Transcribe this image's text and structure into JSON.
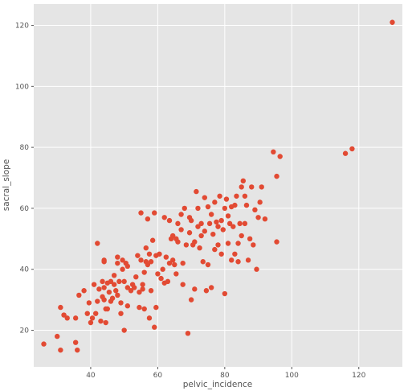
{
  "chart_data": {
    "type": "scatter",
    "title": "",
    "xlabel": "pelvic_incidence",
    "ylabel": "sacral_slope",
    "xlim": [
      23,
      133
    ],
    "ylim": [
      8,
      127
    ],
    "xticks": [
      40,
      60,
      80,
      100,
      120
    ],
    "yticks": [
      20,
      40,
      60,
      80,
      100,
      120
    ],
    "grid": true,
    "colors": {
      "point": "#E24A33",
      "background": "#E5E5E5",
      "grid": "#FFFFFF"
    },
    "series": [
      {
        "points": [
          [
            26,
            15.5
          ],
          [
            30,
            18
          ],
          [
            31,
            13.5
          ],
          [
            31,
            27.5
          ],
          [
            32,
            25
          ],
          [
            33,
            24
          ],
          [
            35.5,
            24
          ],
          [
            35.5,
            16
          ],
          [
            36,
            13.5
          ],
          [
            36.5,
            31.5
          ],
          [
            38,
            33
          ],
          [
            39,
            25.5
          ],
          [
            39.5,
            29
          ],
          [
            40,
            22.5
          ],
          [
            40.5,
            24
          ],
          [
            41,
            35
          ],
          [
            41.5,
            25.5
          ],
          [
            42,
            48.5
          ],
          [
            42,
            29.5
          ],
          [
            42.5,
            33.5
          ],
          [
            43,
            23
          ],
          [
            43.5,
            36
          ],
          [
            43.5,
            31
          ],
          [
            44,
            43
          ],
          [
            44,
            42.5
          ],
          [
            44,
            34
          ],
          [
            44,
            30
          ],
          [
            44.5,
            27
          ],
          [
            44.5,
            22.5
          ],
          [
            45,
            35.5
          ],
          [
            45,
            27
          ],
          [
            45.5,
            32.5
          ],
          [
            46,
            36
          ],
          [
            46,
            29.5
          ],
          [
            46.5,
            30.5
          ],
          [
            47,
            38
          ],
          [
            47,
            35
          ],
          [
            47.5,
            33
          ],
          [
            48,
            31.5
          ],
          [
            48,
            42
          ],
          [
            48,
            44
          ],
          [
            48.5,
            36
          ],
          [
            49,
            25.5
          ],
          [
            49,
            29
          ],
          [
            49.5,
            43
          ],
          [
            49.5,
            40
          ],
          [
            50,
            20
          ],
          [
            50,
            36
          ],
          [
            50.5,
            42
          ],
          [
            51,
            34
          ],
          [
            51,
            28
          ],
          [
            51,
            41
          ],
          [
            52,
            33
          ],
          [
            52.5,
            35
          ],
          [
            53,
            34
          ],
          [
            53.5,
            37.5
          ],
          [
            54,
            44.5
          ],
          [
            54.5,
            32.5
          ],
          [
            54.5,
            27.5
          ],
          [
            55,
            58.5
          ],
          [
            55,
            43
          ],
          [
            55.5,
            35
          ],
          [
            55.5,
            33.5
          ],
          [
            56,
            27
          ],
          [
            56,
            39
          ],
          [
            56.5,
            47
          ],
          [
            56.5,
            42.5
          ],
          [
            57,
            56.5
          ],
          [
            57,
            41.5
          ],
          [
            57.5,
            45
          ],
          [
            57.5,
            24
          ],
          [
            58,
            33
          ],
          [
            58,
            42.5
          ],
          [
            58.5,
            49.5
          ],
          [
            59,
            58.5
          ],
          [
            59,
            21
          ],
          [
            59.5,
            44.5
          ],
          [
            59.5,
            27.5
          ],
          [
            60,
            38.5
          ],
          [
            60.5,
            45
          ],
          [
            61,
            37
          ],
          [
            61.5,
            40
          ],
          [
            62,
            57
          ],
          [
            62,
            35.5
          ],
          [
            62.5,
            44
          ],
          [
            63,
            36
          ],
          [
            63.5,
            56
          ],
          [
            63.5,
            42
          ],
          [
            64,
            50
          ],
          [
            64.5,
            51
          ],
          [
            64.5,
            43
          ],
          [
            65,
            41.5
          ],
          [
            65.5,
            38.5
          ],
          [
            65.5,
            50
          ],
          [
            66,
            55
          ],
          [
            66,
            49
          ],
          [
            67,
            58
          ],
          [
            67,
            53
          ],
          [
            67.5,
            42
          ],
          [
            67.5,
            35
          ],
          [
            68,
            60
          ],
          [
            68.5,
            48
          ],
          [
            69,
            19
          ],
          [
            69.5,
            52
          ],
          [
            69.5,
            57
          ],
          [
            70,
            56
          ],
          [
            70,
            30
          ],
          [
            70.5,
            48
          ],
          [
            71,
            49
          ],
          [
            71,
            33.5
          ],
          [
            71.5,
            65.5
          ],
          [
            72,
            60
          ],
          [
            72,
            54
          ],
          [
            72.5,
            47
          ],
          [
            73,
            55
          ],
          [
            73,
            51
          ],
          [
            73.5,
            42.5
          ],
          [
            74,
            63.5
          ],
          [
            74,
            52.5
          ],
          [
            74.5,
            33
          ],
          [
            75,
            41.5
          ],
          [
            75,
            60.5
          ],
          [
            75.5,
            55
          ],
          [
            76,
            58
          ],
          [
            76,
            34
          ],
          [
            76.5,
            51.5
          ],
          [
            77,
            46.5
          ],
          [
            77,
            62
          ],
          [
            77.5,
            55.5
          ],
          [
            78,
            48
          ],
          [
            78,
            54
          ],
          [
            78.5,
            64
          ],
          [
            79,
            56
          ],
          [
            79,
            45
          ],
          [
            79.5,
            53
          ],
          [
            80,
            60
          ],
          [
            80,
            32
          ],
          [
            80.5,
            63
          ],
          [
            81,
            57.5
          ],
          [
            81,
            48.5
          ],
          [
            81.5,
            55
          ],
          [
            82,
            60.5
          ],
          [
            82,
            43
          ],
          [
            82.5,
            54
          ],
          [
            83,
            45
          ],
          [
            83,
            61
          ],
          [
            83.5,
            64
          ],
          [
            84,
            48.5
          ],
          [
            84,
            42.5
          ],
          [
            84.5,
            55
          ],
          [
            85,
            51
          ],
          [
            85,
            67
          ],
          [
            85.5,
            69
          ],
          [
            86,
            64
          ],
          [
            86,
            55
          ],
          [
            86.5,
            61
          ],
          [
            87,
            43
          ],
          [
            87.5,
            50
          ],
          [
            88,
            67
          ],
          [
            88.5,
            48
          ],
          [
            89,
            59.5
          ],
          [
            89.5,
            40
          ],
          [
            90,
            57
          ],
          [
            90.5,
            62
          ],
          [
            91,
            67
          ],
          [
            92,
            56.5
          ],
          [
            94.5,
            78.5
          ],
          [
            95.5,
            70.5
          ],
          [
            95.5,
            49
          ],
          [
            96.5,
            77
          ],
          [
            116,
            78
          ],
          [
            118,
            79.5
          ],
          [
            130,
            121
          ]
        ]
      }
    ]
  }
}
